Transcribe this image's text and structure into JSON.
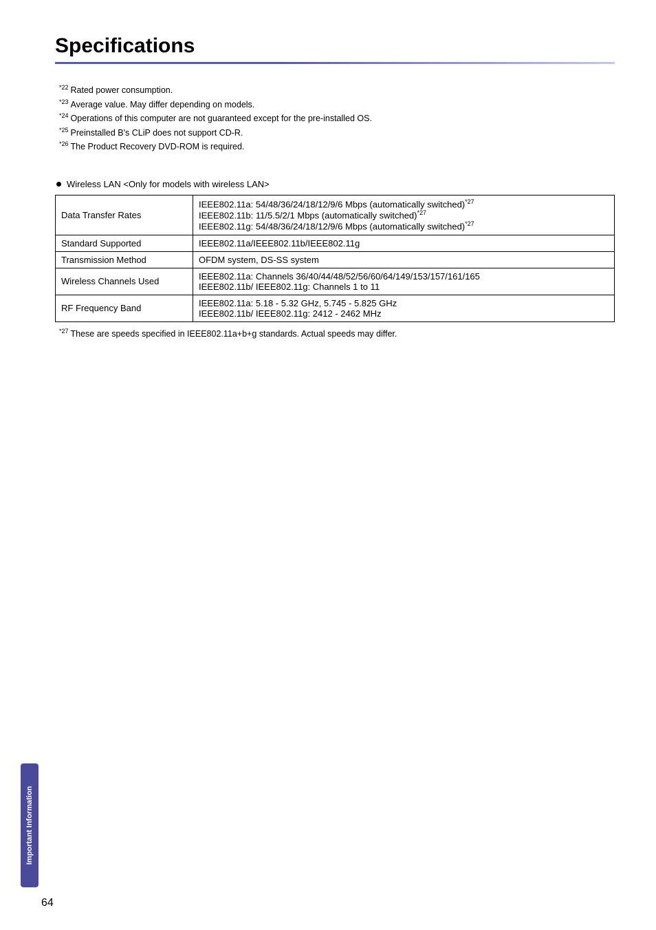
{
  "page": {
    "title": "Specifications",
    "title_underline_colors": [
      "#5a5aa0",
      "#c8c8e8"
    ],
    "page_number": "64",
    "side_tab_label": "Important Information",
    "side_tab_bg": "#4a4a9a",
    "side_tab_text_color": "#ffffff"
  },
  "footnotes_top": [
    {
      "ref": "*22",
      "text": "Rated power consumption."
    },
    {
      "ref": "*23",
      "text": "Average value. May differ depending on models."
    },
    {
      "ref": "*24",
      "text": "Operations of this computer are not guaranteed except for the pre-installed OS."
    },
    {
      "ref": "*25",
      "text": "Preinstalled B's CLiP does not support CD-R."
    },
    {
      "ref": "*26",
      "text": "The Product Recovery DVD-ROM is required."
    }
  ],
  "section": {
    "heading": "Wireless LAN <Only for models with wireless LAN>"
  },
  "table": {
    "rows": [
      {
        "label": "Data Transfer Rates",
        "lines": [
          {
            "prefix": "IEEE802.11a: 54/48/36/24/18/12/9/6 ",
            "unit": "Mbps",
            "suffix": " (automatically switched)",
            "ref": "*27"
          },
          {
            "prefix": "IEEE802.11b: 11/5.5/2/1 ",
            "unit": "Mbps",
            "suffix": " (automatically switched)",
            "ref": "*27"
          },
          {
            "prefix": "IEEE802.11g: 54/48/36/24/18/12/9/6 ",
            "unit": "Mbps",
            "suffix": " (automatically switched)",
            "ref": "*27"
          }
        ]
      },
      {
        "label": "Standard Supported",
        "lines": [
          {
            "prefix": "IEEE802.11a/IEEE802.11b/IEEE802.11g",
            "unit": "",
            "suffix": "",
            "ref": ""
          }
        ]
      },
      {
        "label": "Transmission Method",
        "lines": [
          {
            "prefix": "OFDM system, DS-SS system",
            "unit": "",
            "suffix": "",
            "ref": ""
          }
        ]
      },
      {
        "label": "Wireless Channels Used",
        "lines": [
          {
            "prefix": "IEEE802.11a: Channels 36/40/44/48/52/56/60/64/149/153/157/161/165",
            "unit": "",
            "suffix": "",
            "ref": ""
          },
          {
            "prefix": "IEEE802.11b/ IEEE802.11g: Channels 1 to 11",
            "unit": "",
            "suffix": "",
            "ref": ""
          }
        ]
      },
      {
        "label": "RF Frequency Band",
        "lines": [
          {
            "prefix": "IEEE802.11a: 5.18 - 5.32 ",
            "unit": "GHz",
            "suffix": ", 5.745 - 5.825 ",
            "unit2": "GHz",
            "ref": ""
          },
          {
            "prefix": "IEEE802.11b/ IEEE802.11g: 2412 - 2462 ",
            "unit": "MHz",
            "suffix": "",
            "ref": ""
          }
        ]
      }
    ]
  },
  "footnotes_bottom": [
    {
      "ref": "*27",
      "text": "These are speeds specified in IEEE802.11a+b+g standards.  Actual speeds may differ."
    }
  ]
}
